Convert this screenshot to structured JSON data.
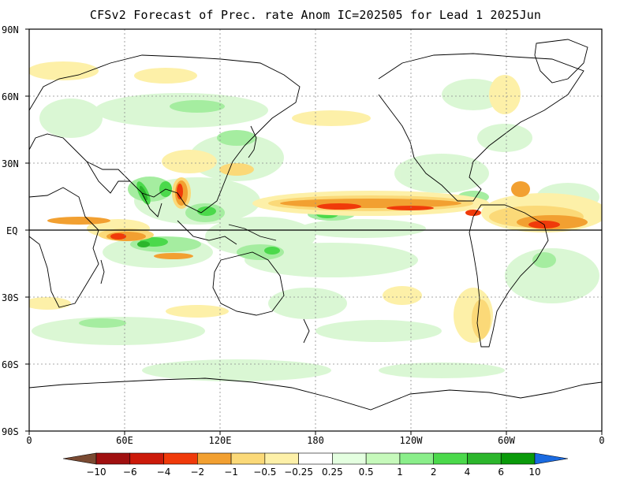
{
  "title": "CFSv2 Forecast of Prec. rate Anom IC=202505 for Lead 1 2025Jun",
  "lat_labels": [
    "90N",
    "60N",
    "30N",
    "EQ",
    "30S",
    "60S",
    "90S"
  ],
  "lon_labels": [
    "0",
    "60E",
    "120E",
    "180",
    "120W",
    "60W",
    "0"
  ],
  "colorbar": {
    "labels": [
      "−10",
      "−6",
      "−4",
      "−2",
      "−1",
      "−0.5",
      "−0.25",
      "0.25",
      "0.5",
      "1",
      "2",
      "4",
      "6",
      "10"
    ],
    "colors": [
      "#7a4a32",
      "#a01010",
      "#cc1a0a",
      "#f03a0a",
      "#f2a031",
      "#fbd978",
      "#fdf0a8",
      "#ffffff",
      "#e4ffe0",
      "#c6f9bb",
      "#8aee8a",
      "#4bd94b",
      "#2cb62c",
      "#0a9a0a",
      "#1a6ae0"
    ]
  },
  "features": {
    "precip_anomaly_fields": "rainfall-anomaly-shading",
    "coastlines": "coastline-outlines",
    "equator": "equator-line"
  }
}
